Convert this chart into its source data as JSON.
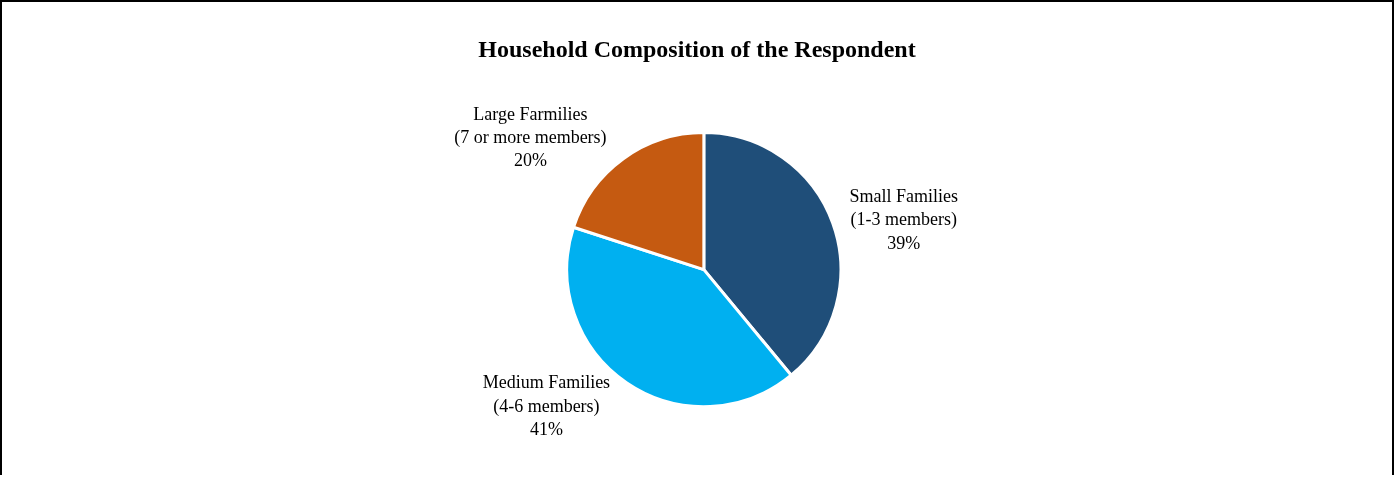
{
  "chart_data": {
    "type": "pie",
    "title": "Household Composition of the Respondent",
    "categories": [
      "Small Families (1-3 members)",
      "Medium Families (4-6 members)",
      "Large Farmilies (7 or more members)"
    ],
    "values": [
      39,
      41,
      20
    ],
    "value_labels": [
      "39%",
      "41%",
      "20%"
    ],
    "colors": [
      "#1f4e79",
      "#00b0f0",
      "#c55a11"
    ],
    "legend": false
  }
}
